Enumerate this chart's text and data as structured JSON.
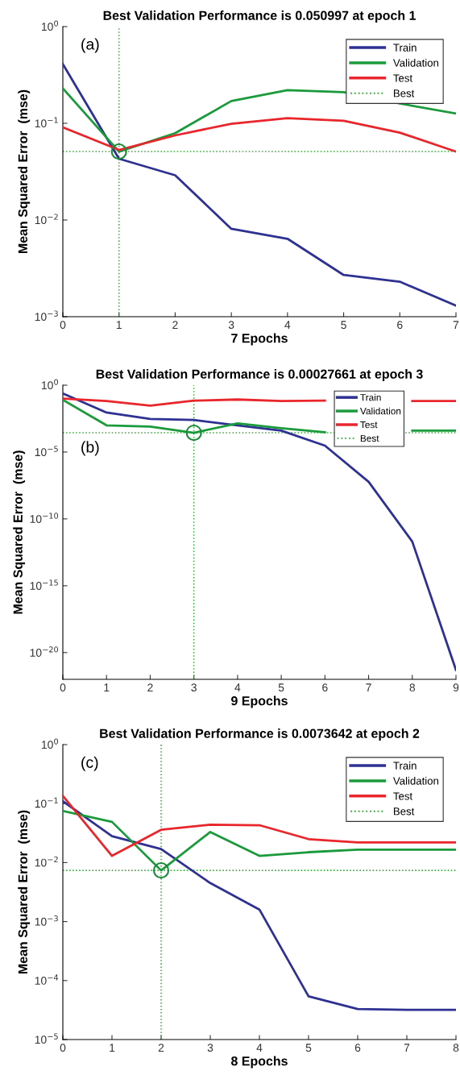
{
  "chart_data": [
    {
      "type": "line",
      "title": "Best Validation Performance is 0.050997 at epoch 1",
      "xlabel": "7 Epochs",
      "ylabel": "Mean Squared Error  (mse)",
      "annotations": [
        "(a)"
      ],
      "log": "y",
      "legend": "top right",
      "grid": false,
      "x": [
        0,
        1,
        2,
        3,
        4,
        5,
        6,
        7
      ],
      "xlim": [
        0,
        7
      ],
      "xticks": [
        0,
        1,
        2,
        3,
        4,
        5,
        6,
        7
      ],
      "ylim": [
        0.001,
        1
      ],
      "yticks": [
        {
          "value": 0.001,
          "label": "10$^{−3}$"
        },
        {
          "value": 0.01,
          "label": "10$^{−2}$"
        },
        {
          "value": 0.1,
          "label": "10$^{−1}$"
        },
        {
          "value": 1,
          "label": "10$^{0}$"
        }
      ],
      "series": [
        {
          "name": "Train",
          "color": "#2e3192",
          "values": [
            0.41,
            0.043,
            0.029,
            0.0081,
            0.0064,
            0.0027,
            0.0023,
            0.0013
          ]
        },
        {
          "name": "Validation",
          "color": "#1a9a3a",
          "values": [
            0.23,
            0.051,
            0.079,
            0.17,
            0.22,
            0.21,
            0.16,
            0.126
          ]
        },
        {
          "name": "Test",
          "color": "#e8262c",
          "values": [
            0.091,
            0.053,
            0.075,
            0.099,
            0.113,
            0.106,
            0.08,
            0.051
          ]
        },
        {
          "type": "scatter",
          "marker": "circle",
          "color": "#1a8a3a",
          "x": [
            1
          ],
          "values": [
            0.050997
          ]
        }
      ],
      "ref_lines": [
        {
          "axis": "x",
          "value": 1,
          "color": "#33aa33",
          "line_style": "dotted"
        },
        {
          "axis": "y",
          "value": 0.050997,
          "label": "Best",
          "color": "#33aa33",
          "line_style": "dotted"
        }
      ]
    },
    {
      "type": "line",
      "title": "Best Validation Performance is 0.00027661 at epoch 3",
      "xlabel": "9 Epochs",
      "ylabel": "Mean Squared Error  (mse)",
      "annotations": [
        "(b)"
      ],
      "log": "y",
      "legend": "top right",
      "grid": false,
      "x": [
        0,
        1,
        2,
        3,
        4,
        5,
        6,
        7,
        8,
        9
      ],
      "xlim": [
        0,
        9
      ],
      "xticks": [
        0,
        1,
        2,
        3,
        4,
        5,
        6,
        7,
        8,
        9
      ],
      "ylim": [
        1e-22,
        1
      ],
      "yticks": [
        {
          "value": 1e-20,
          "label": "10$^{−20}$"
        },
        {
          "value": 1e-15,
          "label": "10$^{−15}$"
        },
        {
          "value": 1e-10,
          "label": "10$^{−10}$"
        },
        {
          "value": 1e-05,
          "label": "10$^{−5}$"
        },
        {
          "value": 1,
          "label": "10$^{0}$"
        }
      ],
      "series": [
        {
          "name": "Train",
          "color": "#2e3192",
          "values": [
            0.24,
            0.009,
            0.003,
            0.0025,
            0.001,
            0.0004,
            3e-05,
            6e-08,
            2e-12,
            5e-22
          ]
        },
        {
          "name": "Validation",
          "color": "#1a9a3a",
          "values": [
            0.08,
            0.001,
            0.0008,
            0.00027661,
            0.0014,
            0.0006,
            0.0003,
            null,
            0.0004,
            0.0004
          ]
        },
        {
          "name": "Test",
          "color": "#e8262c",
          "values": [
            0.1,
            0.066,
            0.03,
            0.07,
            0.085,
            0.066,
            0.07,
            null,
            0.066,
            0.066
          ]
        },
        {
          "type": "scatter",
          "marker": "circle",
          "color": "#1a8a3a",
          "x": [
            3
          ],
          "values": [
            0.00027661
          ]
        }
      ],
      "ref_lines": [
        {
          "axis": "x",
          "value": 3,
          "color": "#33aa33",
          "line_style": "dotted"
        },
        {
          "axis": "y",
          "value": 0.00027661,
          "label": "Best",
          "color": "#33aa33",
          "line_style": "dotted"
        }
      ]
    },
    {
      "type": "line",
      "title": "Best Validation Performance is 0.0073642 at epoch 2",
      "xlabel": "8 Epochs",
      "ylabel": "Mean Squared Error  (mse)",
      "annotations": [
        "(c)"
      ],
      "log": "y",
      "legend": "top right",
      "grid": false,
      "x": [
        0,
        1,
        2,
        3,
        4,
        5,
        6,
        7,
        8
      ],
      "xlim": [
        0,
        8
      ],
      "xticks": [
        0,
        1,
        2,
        3,
        4,
        5,
        6,
        7,
        8
      ],
      "ylim": [
        1e-05,
        1
      ],
      "yticks": [
        {
          "value": 1e-05,
          "label": "10$^{−5}$"
        },
        {
          "value": 0.0001,
          "label": "10$^{−4}$"
        },
        {
          "value": 0.001,
          "label": "10$^{−3}$"
        },
        {
          "value": 0.01,
          "label": "10$^{−2}$"
        },
        {
          "value": 0.1,
          "label": "10$^{−1}$"
        },
        {
          "value": 1,
          "label": "10$^{0}$"
        }
      ],
      "series": [
        {
          "name": "Train",
          "color": "#2e3192",
          "values": [
            0.11,
            0.028,
            0.017,
            0.0045,
            0.0016,
            5.4e-05,
            3.3e-05,
            3.2e-05,
            3.2e-05
          ]
        },
        {
          "name": "Validation",
          "color": "#1a9a3a",
          "values": [
            0.075,
            0.049,
            0.0073642,
            0.033,
            0.013,
            0.015,
            0.0165,
            0.0165,
            0.0165
          ]
        },
        {
          "name": "Test",
          "color": "#e8262c",
          "values": [
            0.135,
            0.013,
            0.036,
            0.044,
            0.043,
            0.025,
            0.022,
            0.022,
            0.022
          ]
        },
        {
          "type": "scatter",
          "marker": "circle",
          "color": "#1a8a3a",
          "x": [
            2
          ],
          "values": [
            0.0073642
          ]
        }
      ],
      "ref_lines": [
        {
          "axis": "x",
          "value": 2,
          "color": "#33aa33",
          "line_style": "dotted"
        },
        {
          "axis": "y",
          "value": 0.0073642,
          "label": "Best",
          "color": "#33aa33",
          "line_style": "dotted"
        }
      ]
    }
  ]
}
